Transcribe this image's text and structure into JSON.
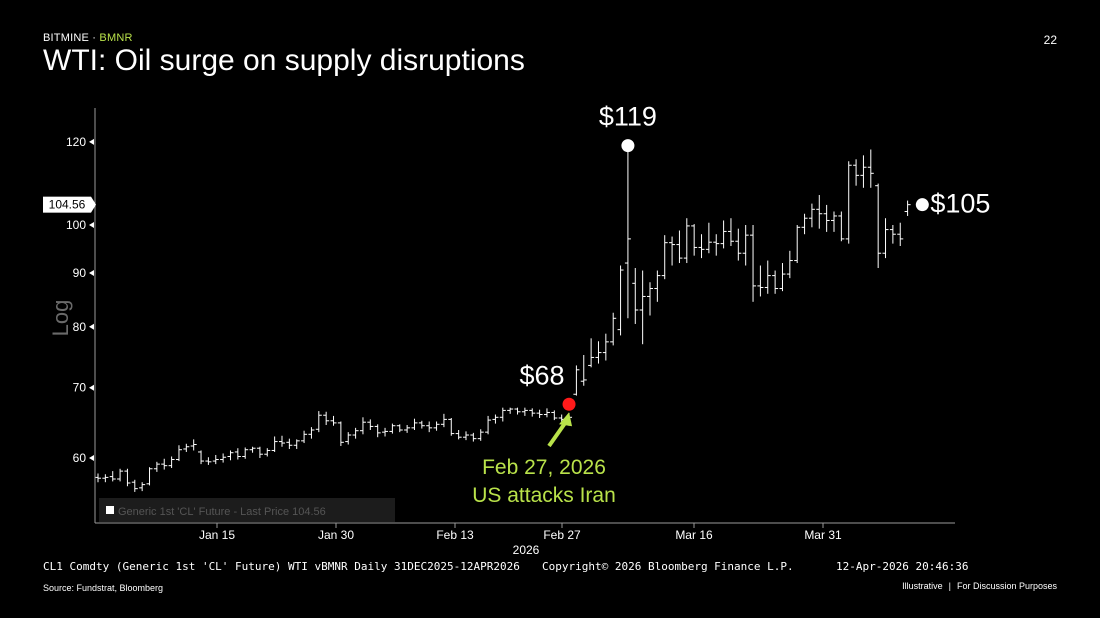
{
  "header": {
    "brand": "BITMINE",
    "separator": "·",
    "ticker": "BMNR",
    "title": "WTI: Oil surge on supply disruptions",
    "page_number": "22"
  },
  "footer": {
    "chart_caption": "CL1 Comdty (Generic 1st 'CL' Future) WTI vBMNR Daily 31DEC2025-12APR2026",
    "copyright": "Copyright© 2026 Bloomberg Finance L.P.",
    "timestamp": "12-Apr-2026 20:46:36",
    "source": "Source: Fundstrat, Bloomberg",
    "illustrative": "Illustrative",
    "disclaimer_separator": "|",
    "disclaimer": "For Discussion Purposes"
  },
  "colors": {
    "background": "#000000",
    "bars": "#ffffff",
    "accent_green": "#b9e24a",
    "marker_red": "#ff1a1a",
    "axis": "#9a9a9a",
    "log_label": "#6a6a6a"
  },
  "chart_data": {
    "type": "ohlc",
    "scale": "log",
    "y_axis_label": "Log",
    "ylim": [
      54,
      126
    ],
    "y_ticks": [
      60,
      70,
      80,
      90,
      100,
      120
    ],
    "last_price_tag": "104.56",
    "last_price": 104.56,
    "legend": "Generic 1st 'CL' Future - Last Price 104.56",
    "x_tick_labels": [
      "Jan 15",
      "Jan 30",
      "Feb 13",
      "Feb 27",
      "Mar 16",
      "Mar 31"
    ],
    "x_year_label": "2026",
    "bars": [
      {
        "o": 57.5,
        "h": 58.0,
        "l": 56.9,
        "c": 57.4
      },
      {
        "o": 57.4,
        "h": 57.9,
        "l": 56.9,
        "c": 57.5
      },
      {
        "o": 57.6,
        "h": 58.3,
        "l": 57.0,
        "c": 57.3
      },
      {
        "o": 57.3,
        "h": 58.6,
        "l": 57.0,
        "c": 58.3
      },
      {
        "o": 58.3,
        "h": 58.6,
        "l": 56.4,
        "c": 56.8
      },
      {
        "o": 56.9,
        "h": 57.2,
        "l": 55.7,
        "c": 56.1
      },
      {
        "o": 56.2,
        "h": 56.9,
        "l": 55.8,
        "c": 56.6
      },
      {
        "o": 56.7,
        "h": 58.8,
        "l": 56.5,
        "c": 58.6
      },
      {
        "o": 58.6,
        "h": 59.5,
        "l": 58.2,
        "c": 59.2
      },
      {
        "o": 59.2,
        "h": 59.9,
        "l": 58.5,
        "c": 59.0
      },
      {
        "o": 59.0,
        "h": 60.2,
        "l": 58.7,
        "c": 59.8
      },
      {
        "o": 59.8,
        "h": 61.7,
        "l": 59.6,
        "c": 61.1
      },
      {
        "o": 61.2,
        "h": 61.9,
        "l": 60.8,
        "c": 61.5
      },
      {
        "o": 61.6,
        "h": 62.5,
        "l": 61.0,
        "c": 61.8
      },
      {
        "o": 60.8,
        "h": 61.0,
        "l": 59.2,
        "c": 59.6
      },
      {
        "o": 59.6,
        "h": 60.1,
        "l": 59.1,
        "c": 59.5
      },
      {
        "o": 59.6,
        "h": 60.4,
        "l": 59.2,
        "c": 59.8
      },
      {
        "o": 59.8,
        "h": 60.6,
        "l": 59.4,
        "c": 60.1
      },
      {
        "o": 60.2,
        "h": 61.0,
        "l": 59.7,
        "c": 60.7
      },
      {
        "o": 60.8,
        "h": 61.3,
        "l": 59.8,
        "c": 60.2
      },
      {
        "o": 60.2,
        "h": 61.4,
        "l": 59.9,
        "c": 61.1
      },
      {
        "o": 61.1,
        "h": 61.5,
        "l": 60.7,
        "c": 61.3
      },
      {
        "o": 61.3,
        "h": 61.5,
        "l": 60.0,
        "c": 60.5
      },
      {
        "o": 60.5,
        "h": 61.3,
        "l": 60.2,
        "c": 61.0
      },
      {
        "o": 61.0,
        "h": 62.9,
        "l": 60.8,
        "c": 62.2
      },
      {
        "o": 62.2,
        "h": 63.0,
        "l": 61.5,
        "c": 62.0
      },
      {
        "o": 62.1,
        "h": 62.6,
        "l": 61.2,
        "c": 61.7
      },
      {
        "o": 61.7,
        "h": 62.5,
        "l": 61.2,
        "c": 62.3
      },
      {
        "o": 62.3,
        "h": 63.7,
        "l": 62.0,
        "c": 63.2
      },
      {
        "o": 63.2,
        "h": 64.2,
        "l": 62.6,
        "c": 63.8
      },
      {
        "o": 63.9,
        "h": 66.5,
        "l": 63.5,
        "c": 65.9
      },
      {
        "o": 65.9,
        "h": 66.4,
        "l": 64.5,
        "c": 65.1
      },
      {
        "o": 65.1,
        "h": 65.8,
        "l": 64.4,
        "c": 64.8
      },
      {
        "o": 64.8,
        "h": 65.0,
        "l": 61.6,
        "c": 62.1
      },
      {
        "o": 62.2,
        "h": 63.5,
        "l": 61.8,
        "c": 63.1
      },
      {
        "o": 63.1,
        "h": 64.1,
        "l": 62.6,
        "c": 63.7
      },
      {
        "o": 63.7,
        "h": 65.6,
        "l": 63.2,
        "c": 64.9
      },
      {
        "o": 64.9,
        "h": 65.3,
        "l": 63.8,
        "c": 64.3
      },
      {
        "o": 64.3,
        "h": 64.6,
        "l": 62.8,
        "c": 63.4
      },
      {
        "o": 63.5,
        "h": 64.1,
        "l": 62.9,
        "c": 63.6
      },
      {
        "o": 63.6,
        "h": 64.7,
        "l": 63.3,
        "c": 64.4
      },
      {
        "o": 64.4,
        "h": 64.6,
        "l": 63.5,
        "c": 63.8
      },
      {
        "o": 63.8,
        "h": 64.5,
        "l": 63.4,
        "c": 64.1
      },
      {
        "o": 64.1,
        "h": 65.4,
        "l": 63.8,
        "c": 64.8
      },
      {
        "o": 64.8,
        "h": 65.1,
        "l": 64.0,
        "c": 64.4
      },
      {
        "o": 64.4,
        "h": 65.0,
        "l": 63.5,
        "c": 64.1
      },
      {
        "o": 64.1,
        "h": 65.0,
        "l": 63.7,
        "c": 64.6
      },
      {
        "o": 64.6,
        "h": 66.1,
        "l": 64.2,
        "c": 65.3
      },
      {
        "o": 65.3,
        "h": 65.5,
        "l": 63.0,
        "c": 63.3
      },
      {
        "o": 63.3,
        "h": 63.8,
        "l": 62.5,
        "c": 62.8
      },
      {
        "o": 62.8,
        "h": 63.6,
        "l": 62.4,
        "c": 63.1
      },
      {
        "o": 63.1,
        "h": 63.4,
        "l": 62.2,
        "c": 62.6
      },
      {
        "o": 62.6,
        "h": 63.9,
        "l": 62.3,
        "c": 63.5
      },
      {
        "o": 63.5,
        "h": 65.8,
        "l": 63.2,
        "c": 65.2
      },
      {
        "o": 65.3,
        "h": 66.0,
        "l": 64.7,
        "c": 65.6
      },
      {
        "o": 65.6,
        "h": 67.0,
        "l": 65.0,
        "c": 66.6
      },
      {
        "o": 66.6,
        "h": 67.0,
        "l": 66.1,
        "c": 66.8
      },
      {
        "o": 66.8,
        "h": 67.0,
        "l": 66.0,
        "c": 66.4
      },
      {
        "o": 66.4,
        "h": 67.0,
        "l": 65.8,
        "c": 66.6
      },
      {
        "o": 66.6,
        "h": 66.9,
        "l": 65.7,
        "c": 66.2
      },
      {
        "o": 66.2,
        "h": 66.7,
        "l": 65.5,
        "c": 66.0
      },
      {
        "o": 66.0,
        "h": 66.9,
        "l": 65.6,
        "c": 66.3
      },
      {
        "o": 66.3,
        "h": 66.6,
        "l": 65.2,
        "c": 65.5
      },
      {
        "o": 65.5,
        "h": 66.0,
        "l": 64.8,
        "c": 65.3
      },
      {
        "o": 65.3,
        "h": 66.2,
        "l": 64.4,
        "c": 65.6
      },
      {
        "o": 69.0,
        "h": 73.5,
        "l": 68.8,
        "c": 72.8
      },
      {
        "o": 71.0,
        "h": 75.2,
        "l": 70.3,
        "c": 71.2
      },
      {
        "o": 73.5,
        "h": 78.0,
        "l": 73.2,
        "c": 74.8
      },
      {
        "o": 74.8,
        "h": 77.5,
        "l": 73.8,
        "c": 75.6
      },
      {
        "o": 75.6,
        "h": 78.8,
        "l": 74.3,
        "c": 77.4
      },
      {
        "o": 77.4,
        "h": 82.5,
        "l": 76.8,
        "c": 81.5
      },
      {
        "o": 79.5,
        "h": 91.5,
        "l": 78.5,
        "c": 90.6
      },
      {
        "o": 92.0,
        "h": 119.0,
        "l": 81.5,
        "c": 97.0
      },
      {
        "o": 88.0,
        "h": 91.0,
        "l": 80.5,
        "c": 83.0
      },
      {
        "o": 83.0,
        "h": 90.5,
        "l": 77.0,
        "c": 85.5
      },
      {
        "o": 85.5,
        "h": 88.2,
        "l": 82.0,
        "c": 87.0
      },
      {
        "o": 87.0,
        "h": 90.5,
        "l": 84.5,
        "c": 89.5
      },
      {
        "o": 89.5,
        "h": 97.8,
        "l": 88.8,
        "c": 96.2
      },
      {
        "o": 96.2,
        "h": 97.5,
        "l": 91.5,
        "c": 95.8
      },
      {
        "o": 95.8,
        "h": 98.8,
        "l": 92.0,
        "c": 93.0
      },
      {
        "o": 93.0,
        "h": 101.5,
        "l": 92.0,
        "c": 99.8
      },
      {
        "o": 99.8,
        "h": 100.2,
        "l": 93.5,
        "c": 95.2
      },
      {
        "o": 95.2,
        "h": 98.0,
        "l": 93.0,
        "c": 94.8
      },
      {
        "o": 94.8,
        "h": 100.5,
        "l": 94.0,
        "c": 96.3
      },
      {
        "o": 96.3,
        "h": 98.0,
        "l": 93.5,
        "c": 96.0
      },
      {
        "o": 96.0,
        "h": 101.0,
        "l": 95.0,
        "c": 98.6
      },
      {
        "o": 98.6,
        "h": 101.5,
        "l": 95.5,
        "c": 96.5
      },
      {
        "o": 96.5,
        "h": 99.2,
        "l": 92.5,
        "c": 94.0
      },
      {
        "o": 94.0,
        "h": 100.0,
        "l": 91.5,
        "c": 97.8
      },
      {
        "o": 97.8,
        "h": 100.0,
        "l": 84.5,
        "c": 87.5
      },
      {
        "o": 87.5,
        "h": 91.5,
        "l": 85.5,
        "c": 87.2
      },
      {
        "o": 87.2,
        "h": 92.5,
        "l": 86.0,
        "c": 89.5
      },
      {
        "o": 89.5,
        "h": 90.5,
        "l": 86.0,
        "c": 87.0
      },
      {
        "o": 87.0,
        "h": 92.0,
        "l": 86.5,
        "c": 89.8
      },
      {
        "o": 89.8,
        "h": 94.5,
        "l": 89.0,
        "c": 92.5
      },
      {
        "o": 92.5,
        "h": 100.0,
        "l": 92.0,
        "c": 99.5
      },
      {
        "o": 99.5,
        "h": 102.5,
        "l": 98.0,
        "c": 101.5
      },
      {
        "o": 101.5,
        "h": 104.8,
        "l": 99.5,
        "c": 103.5
      },
      {
        "o": 103.5,
        "h": 106.8,
        "l": 99.2,
        "c": 102.5
      },
      {
        "o": 102.5,
        "h": 104.5,
        "l": 98.5,
        "c": 101.0
      },
      {
        "o": 101.0,
        "h": 103.0,
        "l": 98.5,
        "c": 102.0
      },
      {
        "o": 102.0,
        "h": 103.0,
        "l": 96.5,
        "c": 97.0
      },
      {
        "o": 97.0,
        "h": 115.0,
        "l": 96.0,
        "c": 114.0
      },
      {
        "o": 114.0,
        "h": 115.5,
        "l": 109.0,
        "c": 111.5
      },
      {
        "o": 111.5,
        "h": 116.5,
        "l": 108.5,
        "c": 113.5
      },
      {
        "o": 113.5,
        "h": 118.0,
        "l": 108.5,
        "c": 112.0
      },
      {
        "o": 109.0,
        "h": 109.5,
        "l": 91.0,
        "c": 94.0
      },
      {
        "o": 94.0,
        "h": 101.5,
        "l": 93.0,
        "c": 99.0
      },
      {
        "o": 99.0,
        "h": 100.0,
        "l": 96.0,
        "c": 98.0
      },
      {
        "o": 98.0,
        "h": 100.5,
        "l": 95.5,
        "c": 97.0
      },
      {
        "o": 103.0,
        "h": 105.5,
        "l": 102.0,
        "c": 104.56
      }
    ],
    "annotations": [
      {
        "label": "$119",
        "value": 119,
        "bar_index": 72,
        "marker": "white"
      },
      {
        "label": "$105",
        "value": 104.56,
        "bar_index": 112,
        "marker": "white"
      },
      {
        "label": "$68",
        "value": 67.5,
        "bar_index": 64,
        "marker": "red"
      }
    ],
    "event_annotation": {
      "line1": "Feb 27, 2026",
      "line2": "US attacks Iran"
    }
  }
}
